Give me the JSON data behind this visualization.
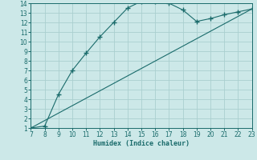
{
  "title": "",
  "xlabel": "Humidex (Indice chaleur)",
  "bg_color": "#cce8e8",
  "grid_color": "#aacfcf",
  "line_color": "#1a6b6b",
  "xlim": [
    7,
    23
  ],
  "ylim": [
    1,
    14
  ],
  "xticks": [
    7,
    8,
    9,
    10,
    11,
    12,
    13,
    14,
    15,
    16,
    17,
    18,
    19,
    20,
    21,
    22,
    23
  ],
  "yticks": [
    1,
    2,
    3,
    4,
    5,
    6,
    7,
    8,
    9,
    10,
    11,
    12,
    13,
    14
  ],
  "curve1_x": [
    7,
    8,
    9,
    10,
    11,
    12,
    13,
    14,
    15,
    16,
    17,
    18,
    19,
    20,
    21,
    22,
    23
  ],
  "curve1_y": [
    1.0,
    1.2,
    4.5,
    7.0,
    8.8,
    10.5,
    12.0,
    13.5,
    14.2,
    14.2,
    14.0,
    13.3,
    12.1,
    12.4,
    12.8,
    13.1,
    13.4
  ],
  "curve2_x": [
    7,
    23
  ],
  "curve2_y": [
    1.0,
    13.4
  ]
}
